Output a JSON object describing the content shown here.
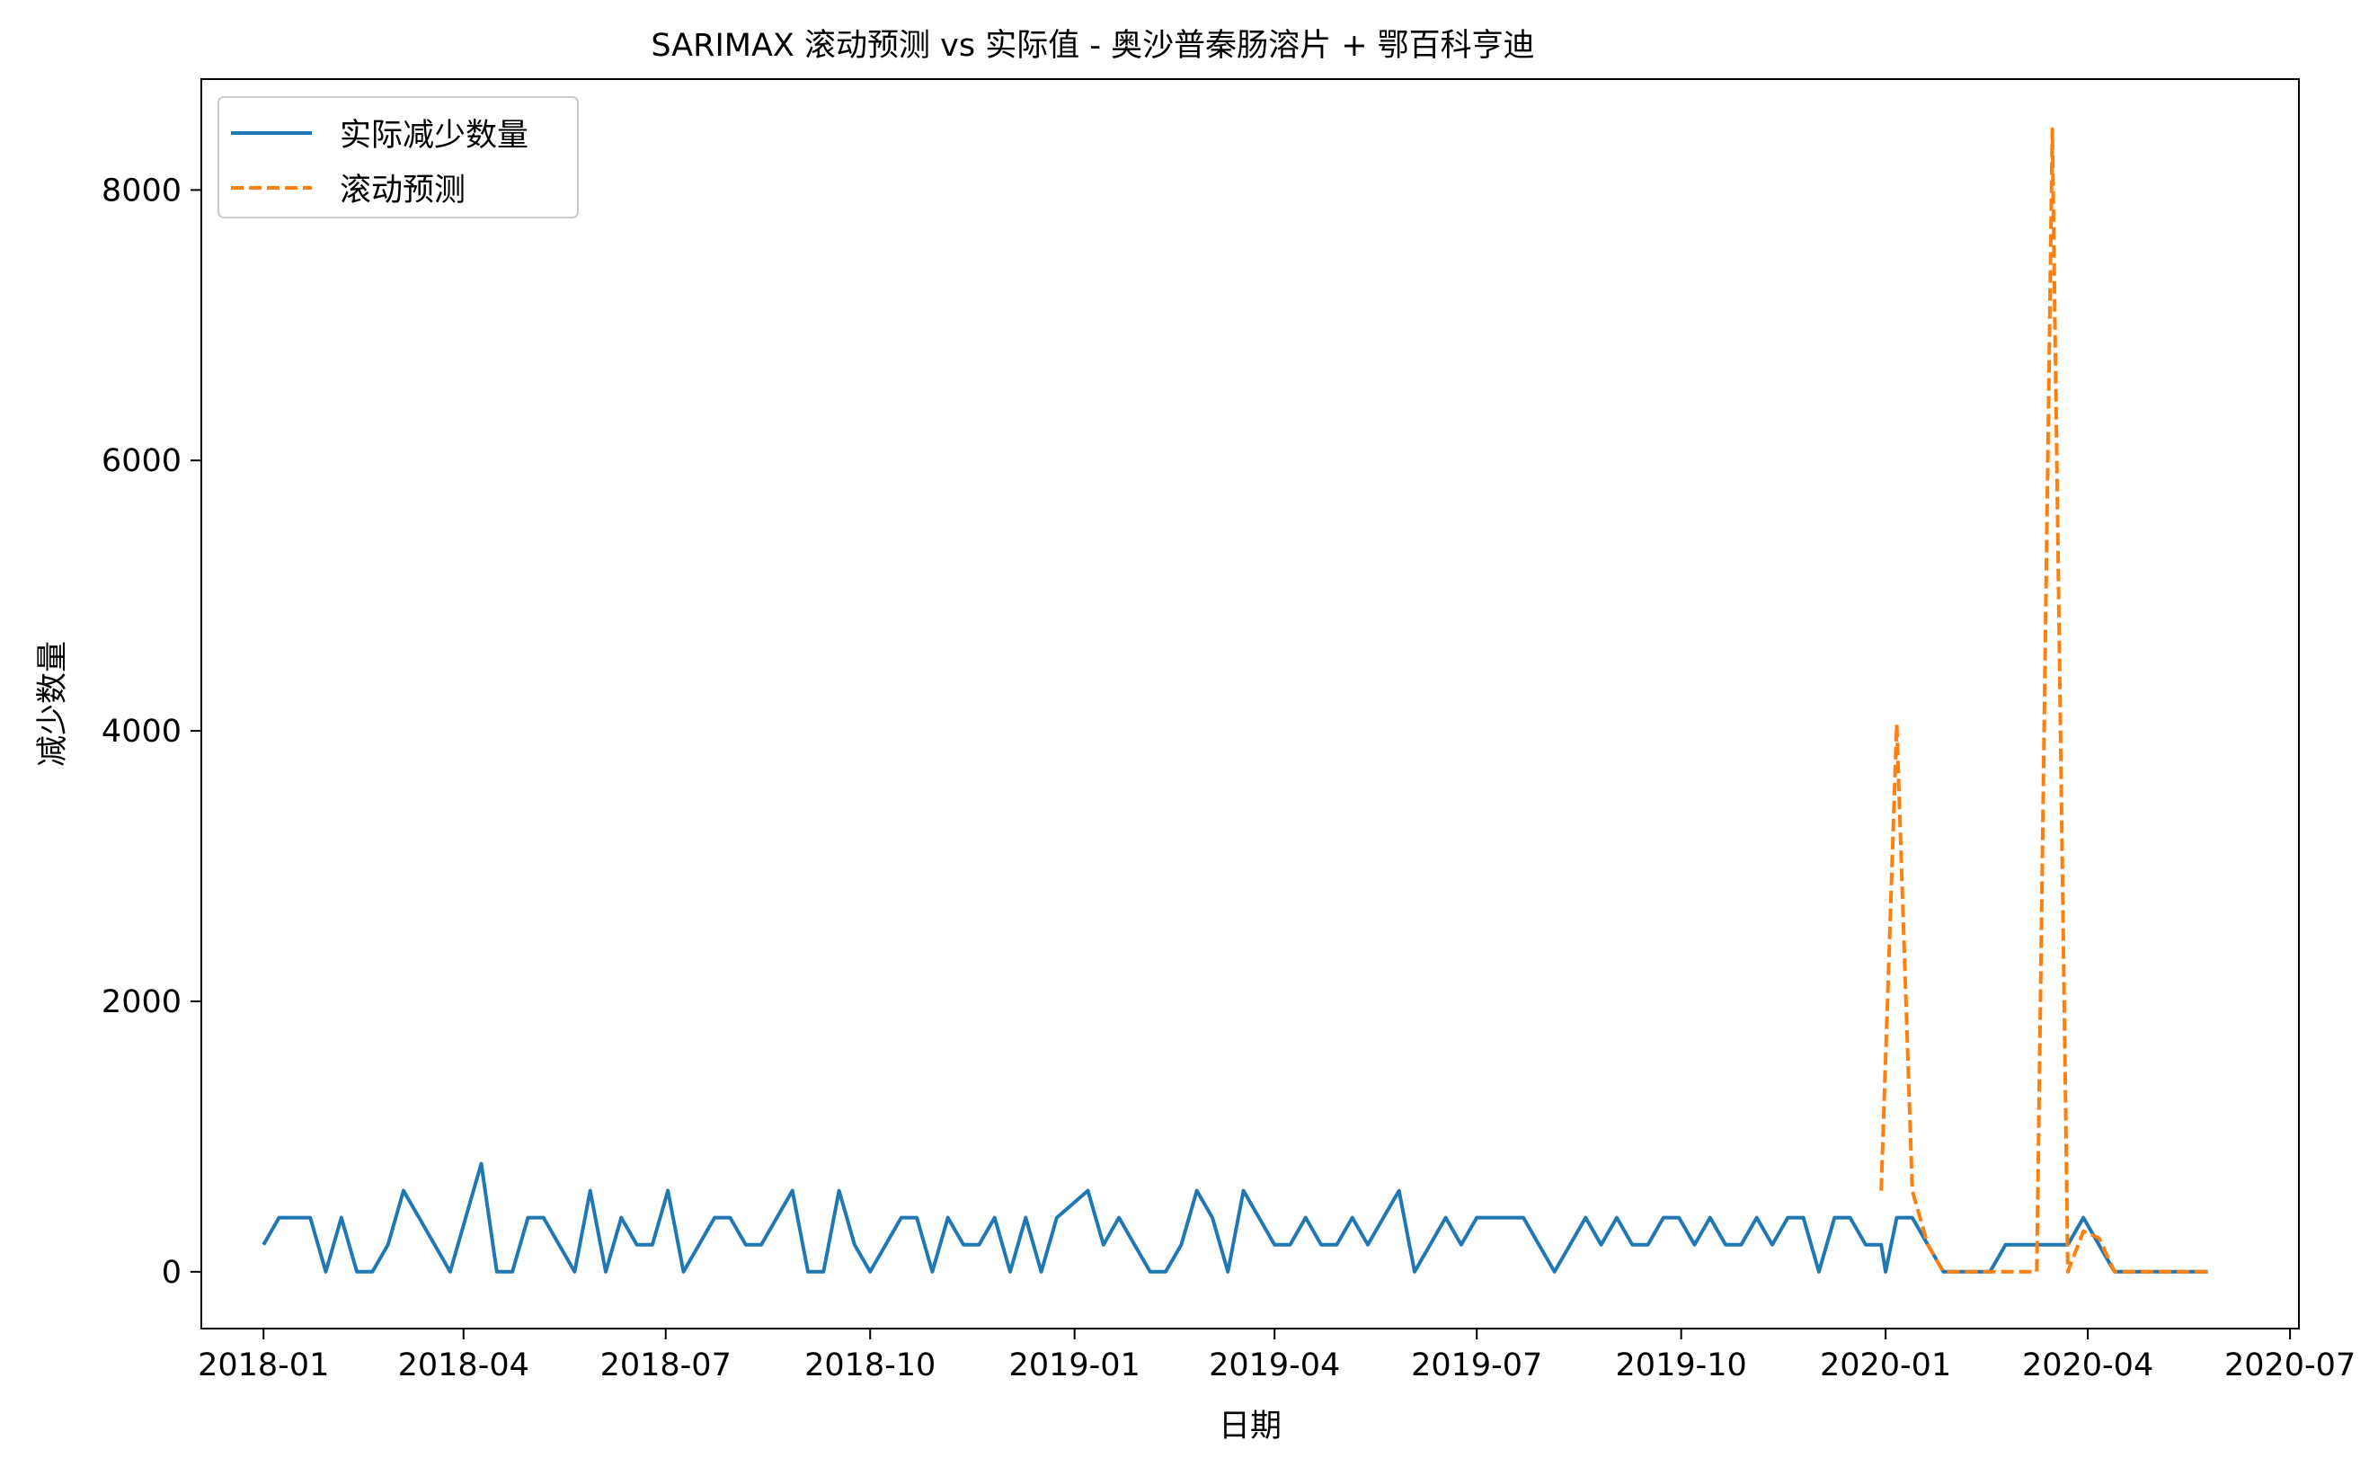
{
  "chart_data": {
    "type": "line",
    "title": "SARIMAX 滚动预测 vs 实际值 - 奥沙普秦肠溶片 + 鄂百科亨迪",
    "xlabel": "日期",
    "ylabel": "减少数量",
    "xlim": [
      "2017-12-04",
      "2020-07-05"
    ],
    "ylim": [
      -420,
      8820
    ],
    "x_ticks": [
      "2018-01",
      "2018-04",
      "2018-07",
      "2018-10",
      "2019-01",
      "2019-04",
      "2019-07",
      "2019-10",
      "2020-01",
      "2020-04",
      "2020-07"
    ],
    "y_ticks": [
      0,
      2000,
      4000,
      6000,
      8000
    ],
    "grid": false,
    "legend": "upper left",
    "series": [
      {
        "name": "实际减少数量",
        "color": "#1f77b4",
        "style": "solid",
        "x": [
          "2018-01-01",
          "2018-01-08",
          "2018-01-15",
          "2018-01-22",
          "2018-01-29",
          "2018-02-05",
          "2018-02-12",
          "2018-02-19",
          "2018-02-26",
          "2018-03-05",
          "2018-03-12",
          "2018-03-19",
          "2018-03-26",
          "2018-04-02",
          "2018-04-09",
          "2018-04-16",
          "2018-04-23",
          "2018-04-30",
          "2018-05-07",
          "2018-05-14",
          "2018-05-21",
          "2018-05-28",
          "2018-06-04",
          "2018-06-11",
          "2018-06-18",
          "2018-06-25",
          "2018-07-02",
          "2018-07-09",
          "2018-07-16",
          "2018-07-23",
          "2018-07-30",
          "2018-08-06",
          "2018-08-13",
          "2018-08-20",
          "2018-08-27",
          "2018-09-03",
          "2018-09-10",
          "2018-09-17",
          "2018-09-24",
          "2018-10-01",
          "2018-10-08",
          "2018-10-15",
          "2018-10-22",
          "2018-10-29",
          "2018-11-05",
          "2018-11-12",
          "2018-11-19",
          "2018-11-26",
          "2018-12-03",
          "2018-12-10",
          "2018-12-17",
          "2018-12-24",
          "2018-12-31",
          "2019-01-07",
          "2019-01-14",
          "2019-01-21",
          "2019-01-28",
          "2019-02-04",
          "2019-02-11",
          "2019-02-18",
          "2019-02-25",
          "2019-03-04",
          "2019-03-11",
          "2019-03-18",
          "2019-03-25",
          "2019-04-01",
          "2019-04-08",
          "2019-04-15",
          "2019-04-22",
          "2019-04-29",
          "2019-05-06",
          "2019-05-13",
          "2019-05-20",
          "2019-05-27",
          "2019-06-03",
          "2019-06-10",
          "2019-06-17",
          "2019-06-24",
          "2019-07-01",
          "2019-07-08",
          "2019-07-15",
          "2019-07-22",
          "2019-07-29",
          "2019-08-05",
          "2019-08-12",
          "2019-08-19",
          "2019-08-26",
          "2019-09-02",
          "2019-09-09",
          "2019-09-16",
          "2019-09-23",
          "2019-09-30",
          "2019-10-07",
          "2019-10-14",
          "2019-10-21",
          "2019-10-28",
          "2019-11-04",
          "2019-11-11",
          "2019-11-18",
          "2019-11-25",
          "2019-12-02",
          "2019-12-09",
          "2019-12-16",
          "2019-12-23",
          "2019-12-30",
          "2020-01-01",
          "2020-01-06",
          "2020-01-13",
          "2020-01-20",
          "2020-01-27",
          "2020-02-03",
          "2020-02-10",
          "2020-02-17",
          "2020-02-24",
          "2020-03-02",
          "2020-03-09",
          "2020-03-16",
          "2020-03-23",
          "2020-03-30",
          "2020-04-06",
          "2020-04-13",
          "2020-04-20",
          "2020-04-27",
          "2020-05-04",
          "2020-05-11",
          "2020-05-18",
          "2020-05-25"
        ],
        "values": [
          200,
          400,
          400,
          400,
          0,
          400,
          0,
          0,
          200,
          600,
          400,
          200,
          0,
          400,
          800,
          0,
          0,
          400,
          400,
          200,
          0,
          600,
          0,
          400,
          200,
          200,
          600,
          0,
          200,
          400,
          400,
          200,
          200,
          400,
          600,
          0,
          0,
          600,
          200,
          0,
          200,
          400,
          400,
          0,
          400,
          200,
          200,
          400,
          0,
          400,
          0,
          400,
          500,
          600,
          200,
          400,
          200,
          0,
          0,
          200,
          600,
          400,
          0,
          600,
          400,
          200,
          200,
          400,
          200,
          200,
          400,
          200,
          400,
          600,
          0,
          200,
          400,
          200,
          400,
          400,
          400,
          400,
          200,
          0,
          200,
          400,
          200,
          400,
          200,
          200,
          400,
          400,
          200,
          400,
          200,
          200,
          400,
          200,
          400,
          400,
          0,
          400,
          400,
          200,
          200,
          0,
          400,
          400,
          200,
          0,
          0,
          0,
          0,
          200,
          200,
          200,
          200,
          200,
          400,
          200,
          0,
          0,
          0,
          0,
          0,
          0,
          0
        ]
      },
      {
        "name": "滚动预测",
        "color": "#ff7f0e",
        "style": "dashed",
        "x": [
          "2019-12-30",
          "2020-01-06",
          "2020-01-13",
          "2020-01-20",
          "2020-01-27",
          "2020-02-03",
          "2020-02-10",
          "2020-02-17",
          "2020-02-24",
          "2020-03-02",
          "2020-03-09",
          "2020-03-16",
          "2020-03-23",
          "2020-03-30",
          "2020-04-06",
          "2020-04-13",
          "2020-04-20",
          "2020-04-27",
          "2020-05-04",
          "2020-05-11",
          "2020-05-18",
          "2020-05-25"
        ],
        "values": [
          600,
          4050,
          600,
          200,
          0,
          0,
          0,
          0,
          0,
          0,
          0,
          8450,
          0,
          300,
          250,
          0,
          0,
          0,
          0,
          0,
          0,
          0
        ]
      }
    ]
  }
}
